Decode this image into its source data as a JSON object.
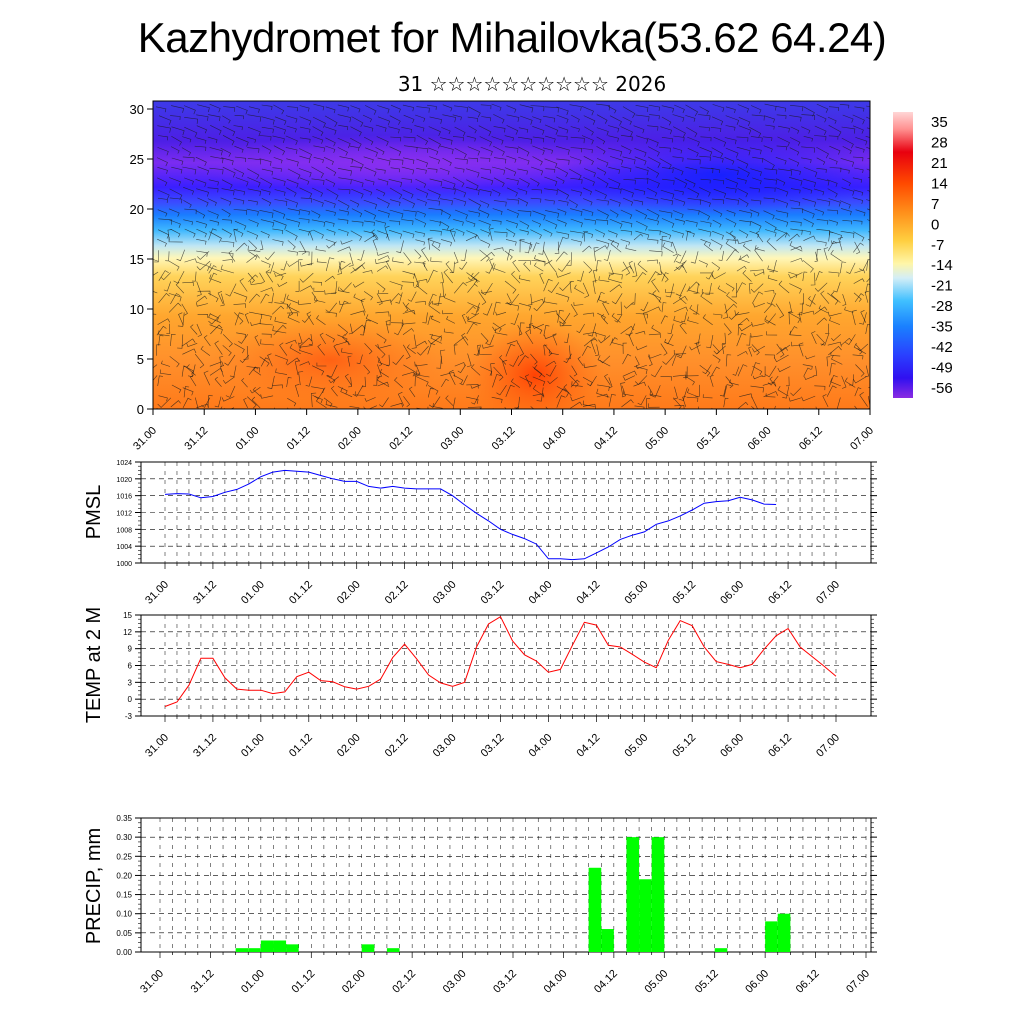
{
  "title": "Kazhydromet for Mihailovka(53.62 64.24)",
  "subtitle": "31 ☆☆☆☆☆☆☆☆☆☆ 2026",
  "time_labels": [
    "31.00",
    "31.12",
    "01.00",
    "01.12",
    "02.00",
    "02.12",
    "03.00",
    "03.12",
    "04.00",
    "04.12",
    "05.00",
    "05.12",
    "06.00",
    "06.12",
    "07.00"
  ],
  "colors": {
    "pmsl_line": "#0000ff",
    "temp_line": "#ff0000",
    "precip_bar": "#00ff00"
  },
  "chart_data": [
    {
      "type": "heatmap",
      "name": "vertical-section",
      "description": "Temperature cross-section with wind barbs",
      "ylim": [
        0,
        30
      ],
      "yticks": [
        0,
        5,
        10,
        15,
        20,
        25,
        30
      ],
      "x": [
        "31.00",
        "31.12",
        "01.00",
        "01.12",
        "02.00",
        "02.12",
        "03.00",
        "03.12",
        "04.00",
        "04.12",
        "05.00",
        "05.12",
        "06.00",
        "06.12",
        "07.00"
      ],
      "colorbar": {
        "labels": [
          "35",
          "28",
          "21",
          "14",
          "7",
          "0",
          "-7",
          "-14",
          "-21",
          "-28",
          "-35",
          "-42",
          "-49",
          "-56"
        ],
        "range": [
          -60,
          38
        ]
      }
    },
    {
      "type": "line",
      "name": "pmsl",
      "ylabel": "PMSL",
      "ylim": [
        1000,
        1024
      ],
      "yticks": [
        1000,
        1004,
        1008,
        1012,
        1016,
        1020,
        1024
      ],
      "series": [
        {
          "name": "PMSL",
          "values": [
            1016.3,
            1016.5,
            1016.4,
            1015.5,
            1015.8,
            1016.8,
            1017.5,
            1018.8,
            1020.5,
            1021.6,
            1022,
            1021.8,
            1021.6,
            1020.8,
            1020,
            1019.4,
            1019.4,
            1018.2,
            1017.8,
            1018.2,
            1017.8,
            1017.6,
            1017.6,
            1017.6,
            1016,
            1013.8,
            1011.8,
            1010,
            1008,
            1006.8,
            1005.8,
            1004.5,
            1001,
            1001,
            1000.8,
            1001,
            1002.4,
            1003.8,
            1005.6,
            1006.6,
            1007.4,
            1009.2,
            1010,
            1011.2,
            1012.6,
            1014.2,
            1014.6,
            1014.8,
            1015.6,
            1015,
            1014,
            1013.9
          ]
        }
      ]
    },
    {
      "type": "line",
      "name": "temp",
      "ylabel": "TEMP at 2 M",
      "ylim": [
        -3,
        15
      ],
      "yticks": [
        -3,
        0,
        3,
        6,
        9,
        12,
        15
      ],
      "series": [
        {
          "name": "TEMP",
          "values": [
            -1.3,
            -0.5,
            2.5,
            7.3,
            7.3,
            3.8,
            1.8,
            1.6,
            1.6,
            1,
            1.3,
            4,
            4.8,
            3.3,
            3.1,
            2.2,
            1.8,
            2.3,
            3.6,
            7.4,
            9.8,
            7.2,
            4.3,
            2.9,
            2.3,
            3,
            9.3,
            13.4,
            14.7,
            10.4,
            7.9,
            6.8,
            4.8,
            5.3,
            9.6,
            13.7,
            13.2,
            9.6,
            9.3,
            8,
            6.6,
            5.6,
            10.5,
            14,
            13.1,
            9.3,
            6.7,
            6.2,
            5.6,
            6.2,
            8.9,
            11.3,
            12.6,
            9.3,
            7.6,
            5.9,
            4.1
          ]
        }
      ]
    },
    {
      "type": "bar",
      "name": "precip",
      "ylabel": "PRECIP, mm",
      "ylim": [
        0,
        0.35
      ],
      "yticks": [
        0,
        0.05,
        0.1,
        0.15,
        0.2,
        0.25,
        0.3,
        0.35
      ],
      "bars": [
        {
          "x": 6,
          "value": 0.01
        },
        {
          "x": 7,
          "value": 0.01
        },
        {
          "x": 8,
          "value": 0.03
        },
        {
          "x": 9,
          "value": 0.03
        },
        {
          "x": 10,
          "value": 0.02
        },
        {
          "x": 16,
          "value": 0.02
        },
        {
          "x": 18,
          "value": 0.01
        },
        {
          "x": 34,
          "value": 0.22
        },
        {
          "x": 35,
          "value": 0.06
        },
        {
          "x": 37,
          "value": 0.3
        },
        {
          "x": 38,
          "value": 0.19
        },
        {
          "x": 39,
          "value": 0.3
        },
        {
          "x": 44,
          "value": 0.01
        },
        {
          "x": 48,
          "value": 0.08
        },
        {
          "x": 49,
          "value": 0.1
        }
      ]
    }
  ]
}
